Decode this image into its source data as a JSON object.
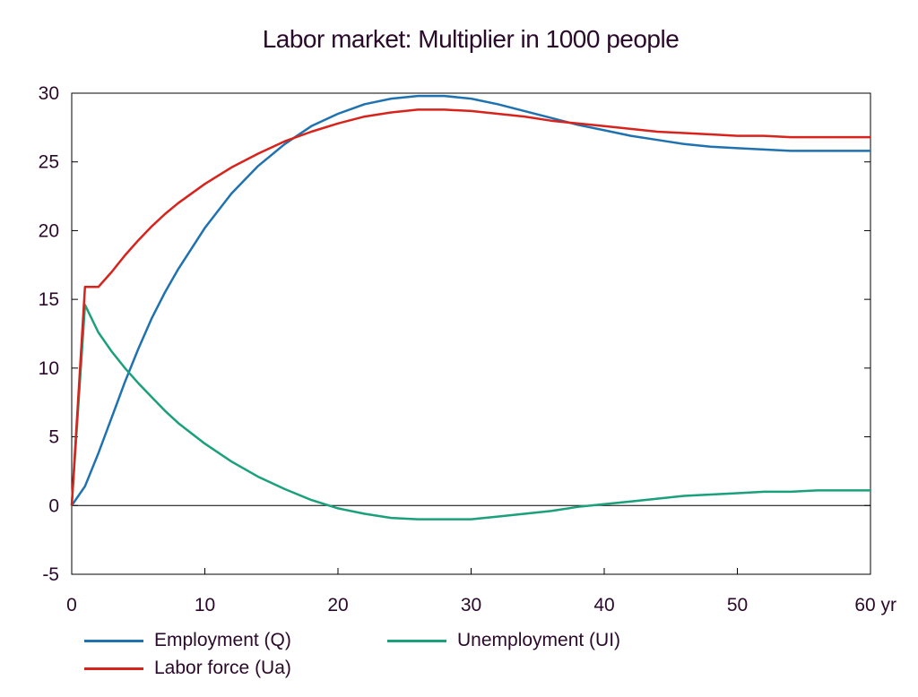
{
  "chart_data": {
    "type": "line",
    "title": "Labor market: Multiplier in 1000 people",
    "xlabel": "",
    "ylabel": "",
    "x_unit": "yr",
    "xlim": [
      0,
      60
    ],
    "ylim": [
      -5,
      30
    ],
    "xticks": [
      0,
      10,
      20,
      30,
      40,
      50,
      60
    ],
    "xtick_labels": [
      "0",
      "10",
      "20",
      "30",
      "40",
      "50",
      "60 yr"
    ],
    "yticks": [
      -5,
      0,
      5,
      10,
      15,
      20,
      25,
      30
    ],
    "ytick_labels": [
      "-5",
      "0",
      "5",
      "10",
      "15",
      "20",
      "25",
      "30"
    ],
    "grid": false,
    "legend_position": "bottom",
    "series": [
      {
        "name": "Employment (Q)",
        "color": "#1f72b0",
        "x": [
          0,
          1,
          2,
          3,
          4,
          5,
          6,
          7,
          8,
          10,
          12,
          14,
          16,
          18,
          20,
          22,
          24,
          26,
          28,
          30,
          32,
          34,
          36,
          38,
          40,
          42,
          44,
          46,
          48,
          50,
          52,
          54,
          56,
          58,
          60
        ],
        "y": [
          0,
          1.4,
          3.8,
          6.4,
          9.0,
          11.4,
          13.6,
          15.5,
          17.2,
          20.2,
          22.7,
          24.7,
          26.3,
          27.6,
          28.5,
          29.2,
          29.6,
          29.8,
          29.8,
          29.6,
          29.2,
          28.7,
          28.2,
          27.7,
          27.3,
          26.9,
          26.6,
          26.3,
          26.1,
          26.0,
          25.9,
          25.8,
          25.8,
          25.8,
          25.8
        ]
      },
      {
        "name": "Unemployment (UI)",
        "color": "#1aa07a",
        "x": [
          0,
          1,
          2,
          3,
          4,
          5,
          6,
          7,
          8,
          10,
          12,
          14,
          16,
          18,
          20,
          22,
          24,
          26,
          28,
          30,
          32,
          34,
          36,
          38,
          40,
          42,
          44,
          46,
          48,
          50,
          52,
          54,
          56,
          58,
          60
        ],
        "y": [
          0,
          14.6,
          12.6,
          11.2,
          10.0,
          8.9,
          7.9,
          6.9,
          6.0,
          4.5,
          3.2,
          2.1,
          1.2,
          0.4,
          -0.2,
          -0.6,
          -0.9,
          -1.0,
          -1.0,
          -1.0,
          -0.8,
          -0.6,
          -0.4,
          -0.1,
          0.1,
          0.3,
          0.5,
          0.7,
          0.8,
          0.9,
          1.0,
          1.0,
          1.1,
          1.1,
          1.1
        ]
      },
      {
        "name": "Labor force (Ua)",
        "color": "#d8231c",
        "x": [
          0,
          1,
          2,
          3,
          4,
          5,
          6,
          7,
          8,
          10,
          12,
          14,
          16,
          18,
          20,
          22,
          24,
          26,
          28,
          30,
          32,
          34,
          36,
          38,
          40,
          42,
          44,
          46,
          48,
          50,
          52,
          54,
          56,
          58,
          60
        ],
        "y": [
          0,
          15.9,
          15.9,
          17.0,
          18.2,
          19.3,
          20.3,
          21.2,
          22.0,
          23.4,
          24.6,
          25.6,
          26.5,
          27.2,
          27.8,
          28.3,
          28.6,
          28.8,
          28.8,
          28.7,
          28.5,
          28.3,
          28.0,
          27.8,
          27.6,
          27.4,
          27.2,
          27.1,
          27.0,
          26.9,
          26.9,
          26.8,
          26.8,
          26.8,
          26.8
        ]
      }
    ]
  }
}
